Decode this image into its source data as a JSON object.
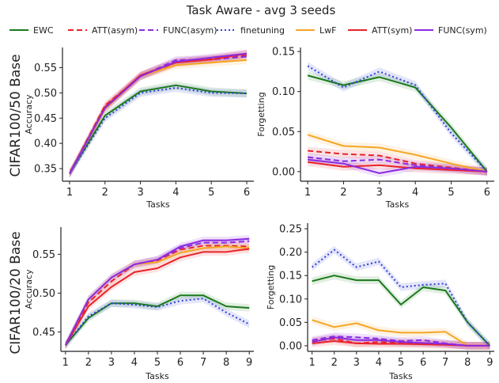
{
  "figure": {
    "title": "Task Aware - avg 3 seeds",
    "row_titles": [
      "CIFAR100/50 Base",
      "CIFAR100/20 Base"
    ]
  },
  "legend": [
    {
      "name": "EWC",
      "color": "#1a7a1a",
      "dash": "solid"
    },
    {
      "name": "ATT(asym)",
      "color": "#e8232a",
      "dash": "dashed"
    },
    {
      "name": "FUNC(asym)",
      "color": "#8a2be2",
      "dash": "dashed"
    },
    {
      "name": "finetuning",
      "color": "#2f3fd8",
      "dash": "dotted"
    },
    {
      "name": "LwF",
      "color": "#f5a623",
      "dash": "solid"
    },
    {
      "name": "ATT(sym)",
      "color": "#e8232a",
      "dash": "solid"
    },
    {
      "name": "FUNC(sym)",
      "color": "#8a2be2",
      "dash": "solid"
    }
  ],
  "chart_data": [
    {
      "type": "line",
      "xlabel": "Tasks",
      "ylabel": "Accuracy",
      "x": [
        1,
        2,
        3,
        4,
        5,
        6
      ],
      "ylim": [
        0.325,
        0.59
      ],
      "yticks": [
        0.35,
        0.4,
        0.45,
        0.5,
        0.55
      ],
      "series": [
        {
          "name": "EWC",
          "values": [
            0.34,
            0.455,
            0.503,
            0.515,
            0.503,
            0.499
          ]
        },
        {
          "name": "ATT(asym)",
          "values": [
            0.34,
            0.475,
            0.533,
            0.56,
            0.568,
            0.575
          ]
        },
        {
          "name": "FUNC(asym)",
          "values": [
            0.34,
            0.47,
            0.533,
            0.565,
            0.566,
            0.572
          ]
        },
        {
          "name": "finetuning",
          "values": [
            0.34,
            0.45,
            0.5,
            0.51,
            0.5,
            0.499
          ]
        },
        {
          "name": "LwF",
          "values": [
            0.34,
            0.468,
            0.533,
            0.555,
            0.56,
            0.565
          ]
        },
        {
          "name": "ATT(sym)",
          "values": [
            0.34,
            0.472,
            0.535,
            0.56,
            0.566,
            0.578
          ]
        },
        {
          "name": "FUNC(sym)",
          "values": [
            0.34,
            0.47,
            0.533,
            0.562,
            0.57,
            0.578
          ]
        }
      ]
    },
    {
      "type": "line",
      "xlabel": "Tasks",
      "ylabel": "Forgetting",
      "x": [
        1,
        2,
        3,
        4,
        5,
        6
      ],
      "ylim": [
        -0.012,
        0.155
      ],
      "yticks": [
        0.0,
        0.05,
        0.1,
        0.15
      ],
      "series": [
        {
          "name": "EWC",
          "values": [
            0.12,
            0.108,
            0.118,
            0.105,
            0.055,
            0.0
          ]
        },
        {
          "name": "ATT(asym)",
          "values": [
            0.026,
            0.022,
            0.02,
            0.01,
            0.005,
            0.0
          ]
        },
        {
          "name": "FUNC(asym)",
          "values": [
            0.018,
            0.013,
            0.015,
            0.008,
            0.004,
            0.0
          ]
        },
        {
          "name": "finetuning",
          "values": [
            0.132,
            0.105,
            0.125,
            0.108,
            0.048,
            0.0
          ]
        },
        {
          "name": "LwF",
          "values": [
            0.046,
            0.032,
            0.03,
            0.021,
            0.01,
            0.0
          ]
        },
        {
          "name": "ATT(sym)",
          "values": [
            0.012,
            0.006,
            0.008,
            0.004,
            0.002,
            0.0
          ]
        },
        {
          "name": "FUNC(sym)",
          "values": [
            0.015,
            0.01,
            -0.002,
            0.006,
            0.004,
            0.0
          ]
        }
      ]
    },
    {
      "type": "line",
      "xlabel": "Tasks",
      "ylabel": "Accuracy",
      "x": [
        1,
        2,
        3,
        4,
        5,
        6,
        7,
        8,
        9
      ],
      "ylim": [
        0.425,
        0.585
      ],
      "yticks": [
        0.45,
        0.5,
        0.55
      ],
      "series": [
        {
          "name": "EWC",
          "values": [
            0.433,
            0.468,
            0.487,
            0.487,
            0.483,
            0.497,
            0.497,
            0.483,
            0.481
          ]
        },
        {
          "name": "ATT(asym)",
          "values": [
            0.433,
            0.488,
            0.515,
            0.537,
            0.542,
            0.556,
            0.561,
            0.561,
            0.56
          ]
        },
        {
          "name": "FUNC(asym)",
          "values": [
            0.433,
            0.492,
            0.52,
            0.537,
            0.543,
            0.558,
            0.565,
            0.565,
            0.567
          ]
        },
        {
          "name": "finetuning",
          "values": [
            0.433,
            0.47,
            0.487,
            0.485,
            0.482,
            0.49,
            0.493,
            0.475,
            0.46
          ]
        },
        {
          "name": "LwF",
          "values": [
            0.433,
            0.492,
            0.52,
            0.537,
            0.54,
            0.552,
            0.558,
            0.56,
            0.558
          ]
        },
        {
          "name": "ATT(sym)",
          "values": [
            0.433,
            0.483,
            0.508,
            0.527,
            0.532,
            0.546,
            0.553,
            0.553,
            0.557
          ]
        },
        {
          "name": "FUNC(sym)",
          "values": [
            0.433,
            0.492,
            0.52,
            0.537,
            0.543,
            0.56,
            0.568,
            0.568,
            0.57
          ]
        }
      ]
    },
    {
      "type": "line",
      "xlabel": "Tasks",
      "ylabel": "Forgetting",
      "x": [
        1,
        2,
        3,
        4,
        5,
        6,
        7,
        8,
        9
      ],
      "ylim": [
        -0.012,
        0.262
      ],
      "yticks": [
        0.0,
        0.05,
        0.1,
        0.15,
        0.2,
        0.25
      ],
      "series": [
        {
          "name": "EWC",
          "values": [
            0.138,
            0.15,
            0.14,
            0.14,
            0.088,
            0.125,
            0.118,
            0.05,
            0.0
          ]
        },
        {
          "name": "ATT(asym)",
          "values": [
            0.01,
            0.015,
            0.005,
            0.008,
            0.006,
            0.006,
            0.004,
            0.0,
            0.0
          ]
        },
        {
          "name": "FUNC(asym)",
          "values": [
            0.012,
            0.02,
            0.018,
            0.015,
            0.01,
            0.012,
            0.005,
            0.0,
            0.0
          ]
        },
        {
          "name": "finetuning",
          "values": [
            0.168,
            0.205,
            0.168,
            0.18,
            0.125,
            0.13,
            0.133,
            0.05,
            0.0
          ]
        },
        {
          "name": "LwF",
          "values": [
            0.055,
            0.04,
            0.048,
            0.033,
            0.028,
            0.028,
            0.03,
            0.0,
            0.0
          ]
        },
        {
          "name": "ATT(sym)",
          "values": [
            0.005,
            0.01,
            0.005,
            0.004,
            0.004,
            0.003,
            0.002,
            0.0,
            0.0
          ]
        },
        {
          "name": "FUNC(sym)",
          "values": [
            0.008,
            0.018,
            0.012,
            0.012,
            0.008,
            0.006,
            0.004,
            0.0,
            0.0
          ]
        }
      ]
    }
  ]
}
